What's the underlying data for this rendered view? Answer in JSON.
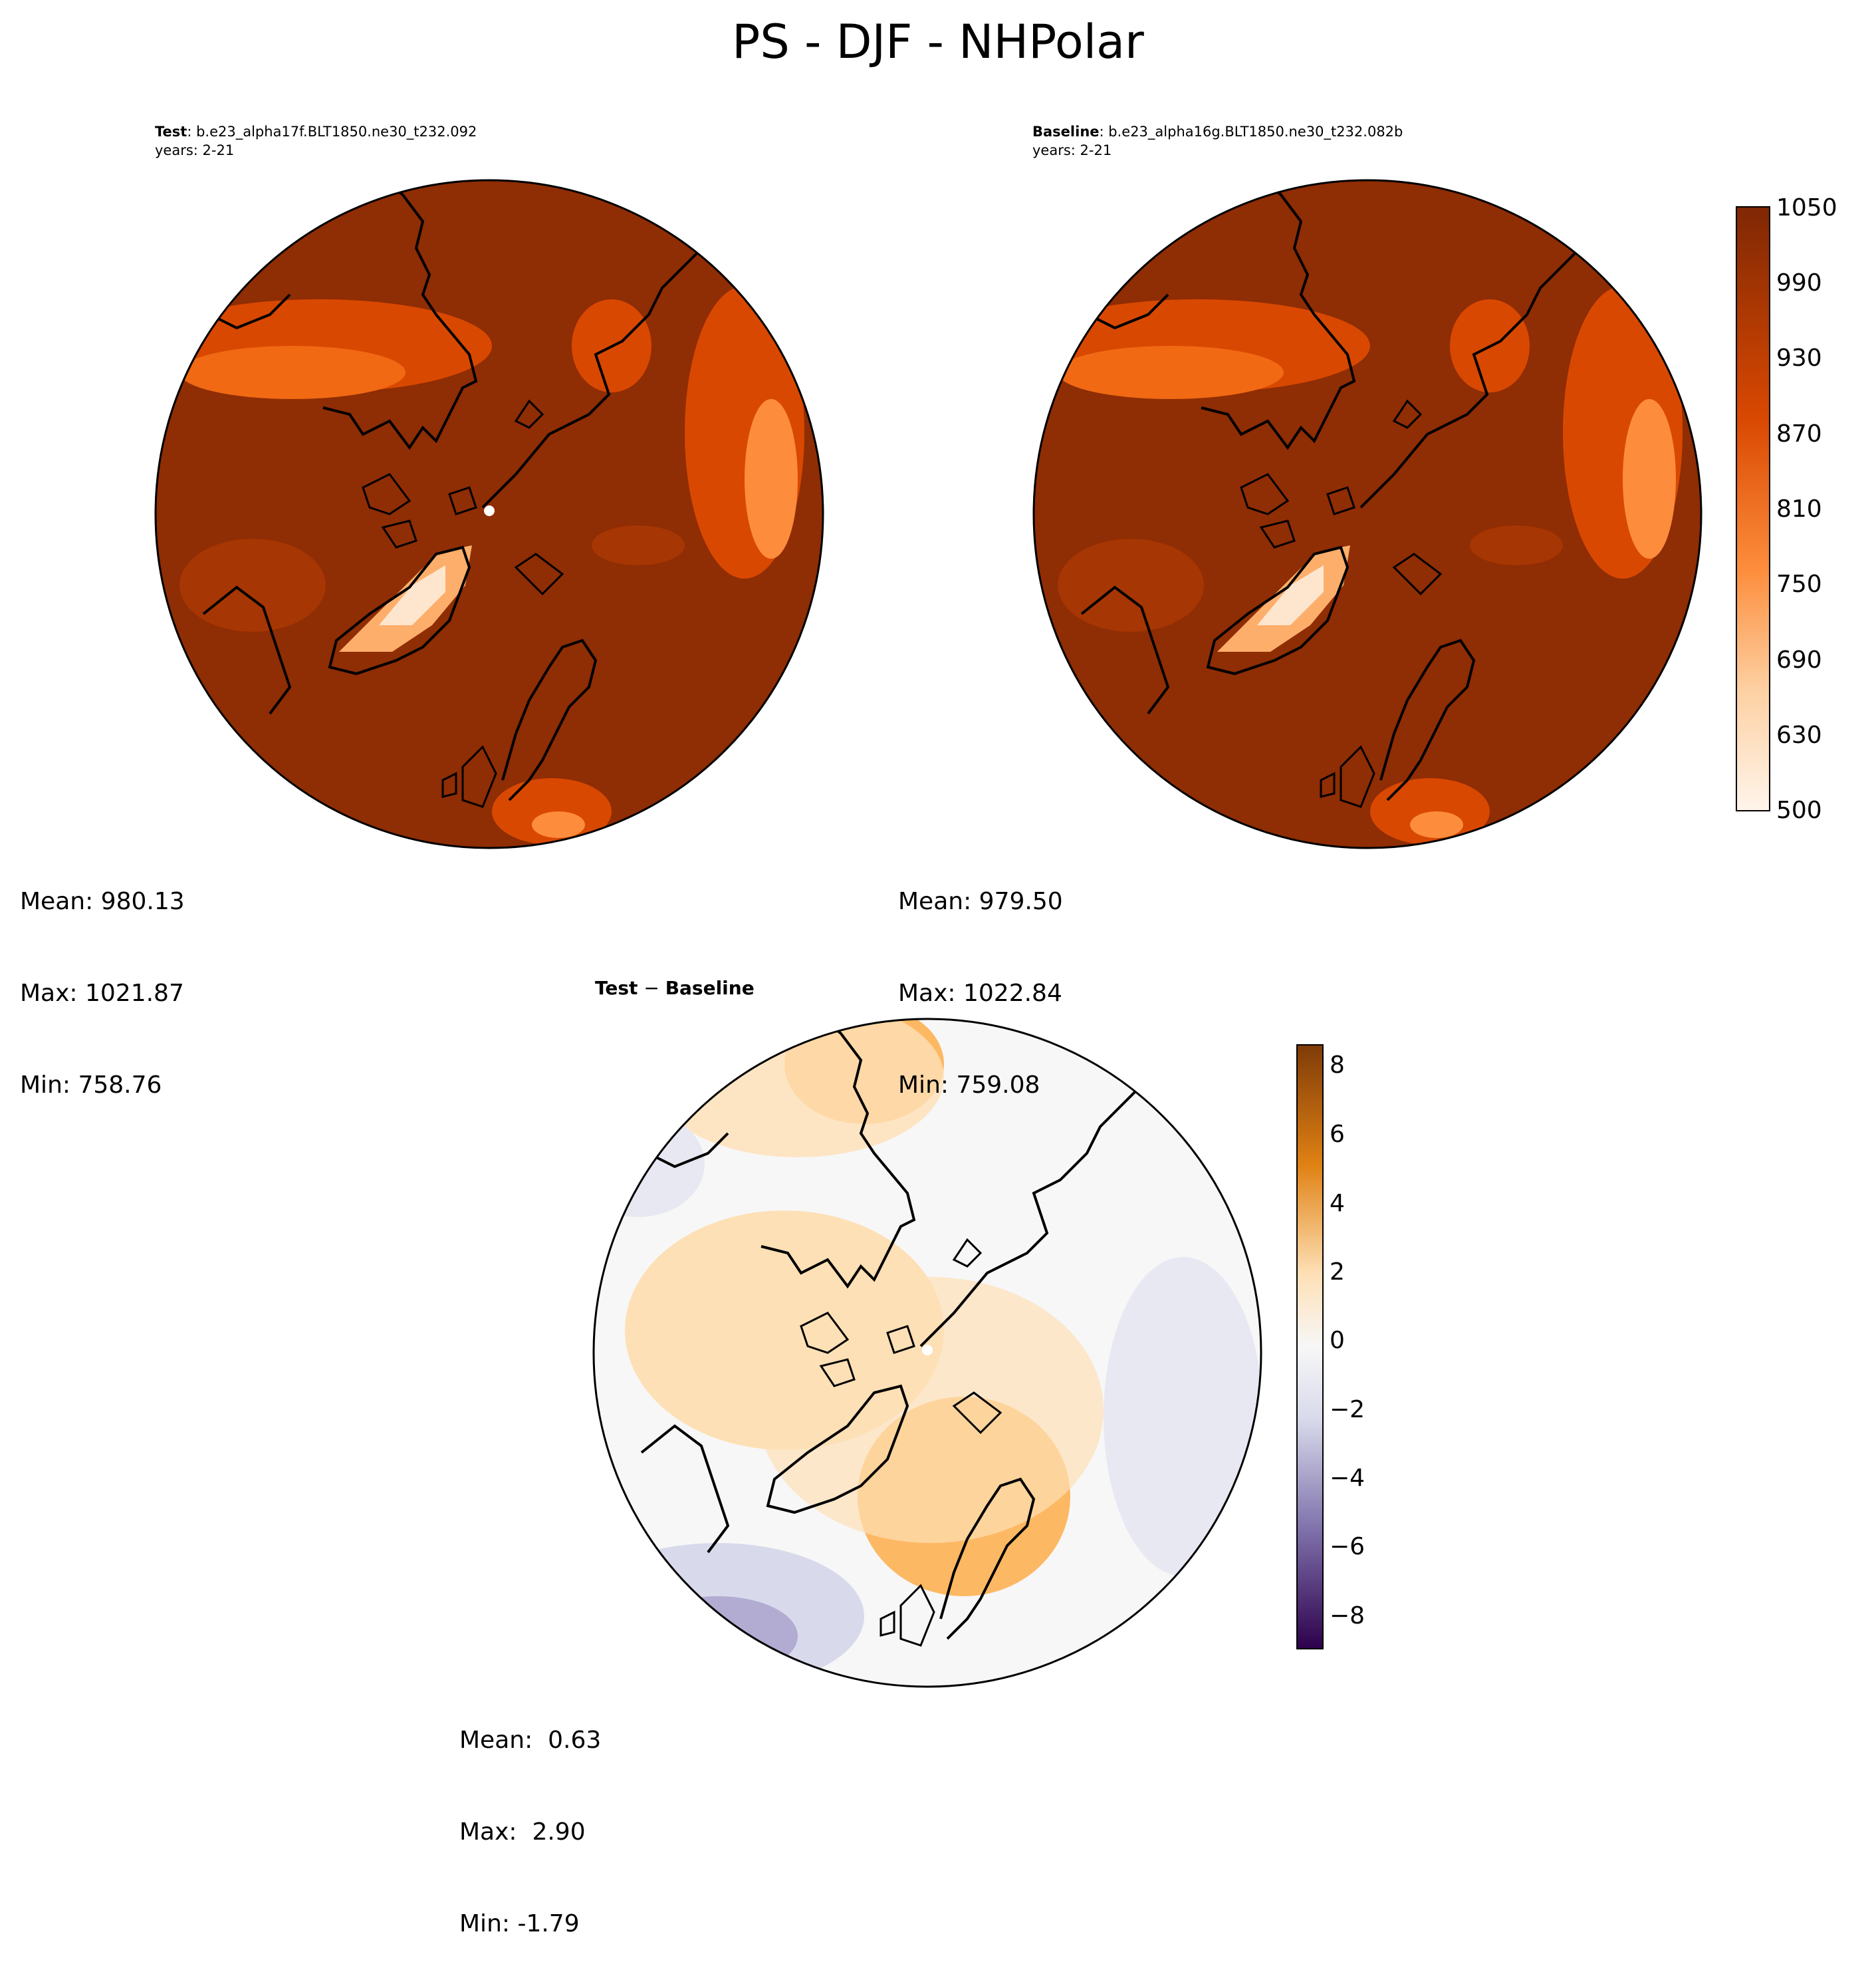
{
  "title": "PS - DJF - NHPolar",
  "panels": {
    "test": {
      "label": "Test",
      "case": ": b.e23_alpha17f.BLT1850.ne30_t232.092",
      "years": "years: 2-21",
      "stats": {
        "mean": "Mean: 980.13",
        "max": "Max: 1021.87",
        "min": "Min: 758.76"
      }
    },
    "baseline": {
      "label": "Baseline",
      "case": ": b.e23_alpha16g.BLT1850.ne30_t232.082b",
      "years": "years: 2-21",
      "stats": {
        "mean": "Mean: 979.50",
        "max": "Max: 1022.84",
        "min": "Min: 759.08"
      }
    },
    "diff": {
      "label_test": "Test",
      "label_minus": " − ",
      "label_baseline": "Baseline",
      "stats": {
        "mean": "Mean:  0.63",
        "max": "Max:  2.90",
        "min": "Min: -1.79"
      }
    }
  },
  "colors": {
    "ocean_high": "#8f2d04",
    "ocean_mid": "#a63603",
    "land_low": "#fdd0a2",
    "land_mid": "#f16913",
    "diff_pos": "#fdb863",
    "diff_pos_light": "#fee0b6",
    "diff_neutral": "#f7f7f7",
    "diff_neg": "#d8daeb",
    "diff_neg_dark": "#8073ac"
  },
  "chart_data": [
    {
      "type": "heatmap",
      "projection": "north polar stereographic",
      "panel": "test",
      "colorbar": {
        "ticks": [
          "1050",
          "990",
          "930",
          "870",
          "810",
          "750",
          "690",
          "630",
          "500"
        ],
        "colormap": "Oranges"
      },
      "mean": 980.13,
      "max": 1021.87,
      "min": 758.76
    },
    {
      "type": "heatmap",
      "projection": "north polar stereographic",
      "panel": "baseline",
      "colorbar": {
        "ticks": [
          "1050",
          "990",
          "930",
          "870",
          "810",
          "750",
          "690",
          "630",
          "500"
        ],
        "colormap": "Oranges"
      },
      "mean": 979.5,
      "max": 1022.84,
      "min": 759.08
    },
    {
      "type": "heatmap",
      "projection": "north polar stereographic",
      "panel": "diff",
      "colorbar": {
        "ticks": [
          "8",
          "6",
          "4",
          "2",
          "0",
          "−2",
          "−4",
          "−6",
          "−8"
        ],
        "colormap": "PuOr_r"
      },
      "mean": 0.63,
      "max": 2.9,
      "min": -1.79
    }
  ]
}
